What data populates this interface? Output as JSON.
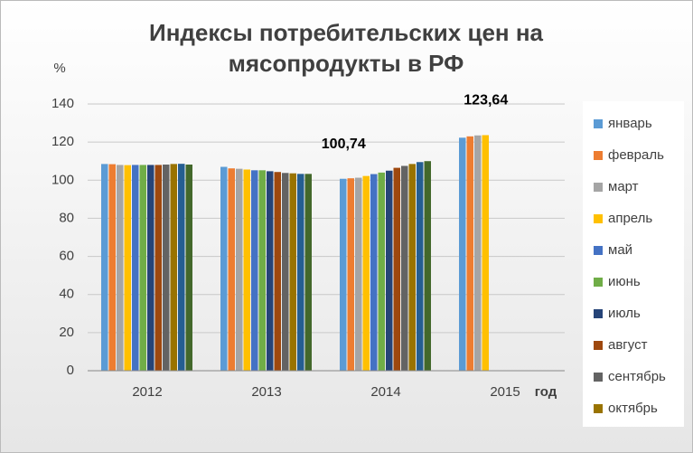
{
  "chart_data": {
    "type": "bar",
    "title": [
      "Индексы потребительских цен на",
      "мясопродукты в РФ"
    ],
    "y_label": "%",
    "x_label": "год",
    "categories": [
      "2012",
      "2013",
      "2014",
      "2015"
    ],
    "ylim": [
      0,
      140
    ],
    "yticks": [
      0,
      20,
      40,
      60,
      80,
      100,
      120,
      140
    ],
    "grid": true,
    "series": [
      {
        "name": "январь",
        "color": "#5B9BD5",
        "values": [
          108.5,
          107.0,
          100.74,
          122.3
        ],
        "value_labels": [
          null,
          null,
          "100,74",
          null
        ]
      },
      {
        "name": "февраль",
        "color": "#ED7D31",
        "values": [
          108.4,
          106.2,
          101.0,
          123.0
        ]
      },
      {
        "name": "март",
        "color": "#A5A5A5",
        "values": [
          108.0,
          106.0,
          101.3,
          123.5
        ]
      },
      {
        "name": "апрель",
        "color": "#FFC000",
        "values": [
          107.9,
          105.6,
          102.2,
          123.64
        ],
        "value_labels": [
          null,
          null,
          null,
          "123,64"
        ]
      },
      {
        "name": "май",
        "color": "#4472C4",
        "values": [
          108.0,
          105.2,
          103.2,
          null
        ]
      },
      {
        "name": "июнь",
        "color": "#70AD47",
        "values": [
          108.0,
          105.2,
          104.0,
          null
        ]
      },
      {
        "name": "июль",
        "color": "#264478",
        "values": [
          108.0,
          104.7,
          105.0,
          null
        ]
      },
      {
        "name": "август",
        "color": "#9E480E",
        "values": [
          108.0,
          104.3,
          106.5,
          null
        ]
      },
      {
        "name": "сентябрь",
        "color": "#636363",
        "values": [
          108.2,
          103.8,
          107.5,
          null
        ]
      },
      {
        "name": "октябрь",
        "color": "#997300",
        "values": [
          108.5,
          103.6,
          108.5,
          null
        ]
      },
      {
        "name": null,
        "color": "#255E91",
        "values": [
          108.6,
          103.3,
          109.5,
          null
        ]
      },
      {
        "name": null,
        "color": "#43682B",
        "values": [
          108.2,
          103.3,
          110.0,
          null
        ]
      }
    ]
  }
}
